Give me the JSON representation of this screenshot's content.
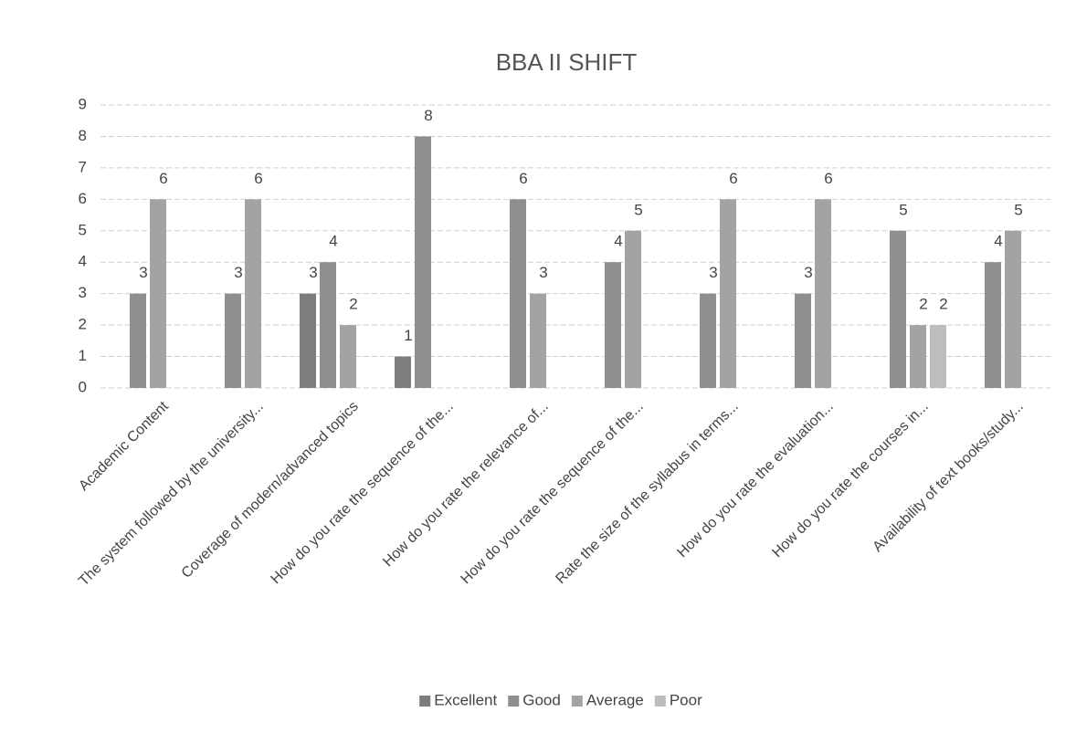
{
  "chart_data": {
    "type": "bar",
    "title": "BBA II SHIFT",
    "categories": [
      "Academic Content",
      "The system followed by the university...",
      "Coverage of modern/advanced topics",
      "How do you rate the sequence of the...",
      "How do you rate the relevance of...",
      "How do you rate the sequence of the...",
      "Rate the size of the syllabus in terms...",
      "How do you rate the evaluation...",
      "How do you rate the courses in...",
      "Availability of text books/study..."
    ],
    "series": [
      {
        "name": "Excellent",
        "color": "#7d7d7d",
        "values": [
          null,
          null,
          3,
          1,
          null,
          null,
          null,
          null,
          null,
          null
        ]
      },
      {
        "name": "Good",
        "color": "#8f8f8f",
        "values": [
          3,
          3,
          4,
          8,
          6,
          4,
          3,
          3,
          5,
          4
        ]
      },
      {
        "name": "Average",
        "color": "#a3a3a3",
        "values": [
          6,
          6,
          2,
          null,
          3,
          5,
          6,
          6,
          2,
          5
        ]
      },
      {
        "name": "Poor",
        "color": "#bdbdbd",
        "values": [
          null,
          null,
          null,
          null,
          null,
          null,
          null,
          null,
          2,
          null
        ]
      }
    ],
    "ylim": [
      0,
      9
    ],
    "yticks": [
      0,
      1,
      2,
      3,
      4,
      5,
      6,
      7,
      8,
      9
    ],
    "grid": true,
    "legend": "bottom"
  }
}
